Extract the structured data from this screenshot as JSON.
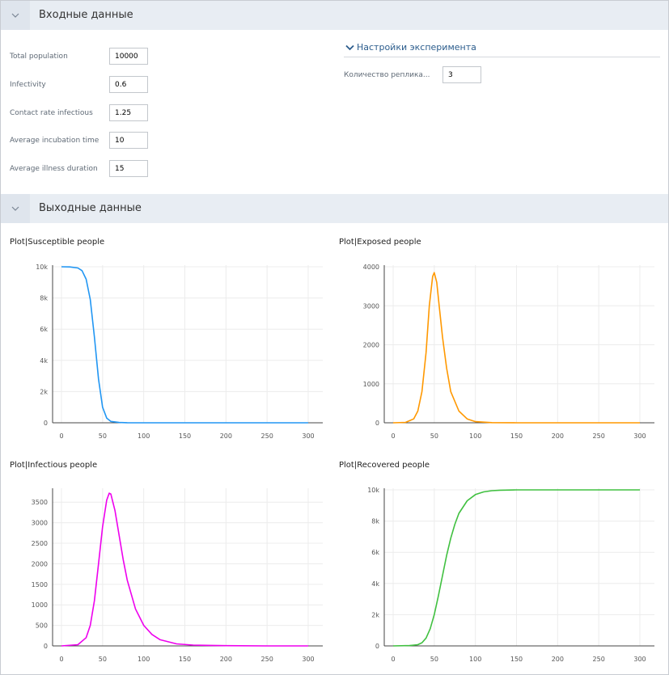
{
  "input_section": {
    "title": "Входные данные"
  },
  "params": [
    {
      "label": "Total population",
      "value": "10000"
    },
    {
      "label": "Infectivity",
      "value": "0.6"
    },
    {
      "label": "Contact rate infectious",
      "value": "1.25"
    },
    {
      "label": "Average incubation time",
      "value": "10"
    },
    {
      "label": "Average illness duration",
      "value": "15"
    }
  ],
  "experiment": {
    "title": "Настройки эксперимента",
    "replications_label": "Количество реплика...",
    "replications_value": "3"
  },
  "output_section": {
    "title": "Выходные данные"
  },
  "chart_data": [
    {
      "type": "line",
      "title": "Plot|Susceptible people",
      "color": "#2196f3",
      "x": [
        0,
        10,
        20,
        25,
        30,
        35,
        40,
        45,
        50,
        55,
        60,
        70,
        80,
        100,
        150,
        200,
        250,
        300
      ],
      "y": [
        10000,
        9990,
        9920,
        9750,
        9200,
        7900,
        5500,
        2800,
        1000,
        300,
        90,
        20,
        5,
        0,
        0,
        0,
        0,
        0
      ],
      "xlim": [
        0,
        300
      ],
      "xticks": [
        0,
        50,
        100,
        150,
        200,
        250,
        300
      ],
      "ylim": [
        0,
        10000
      ],
      "yticks": [
        0,
        2000,
        4000,
        6000,
        8000,
        10000
      ],
      "ytick_labels": [
        "0",
        "2k",
        "4k",
        "6k",
        "8k",
        "10k"
      ]
    },
    {
      "type": "line",
      "title": "Plot|Exposed people",
      "color": "#ff9800",
      "x": [
        0,
        15,
        25,
        30,
        35,
        40,
        44,
        48,
        50,
        53,
        56,
        60,
        65,
        70,
        80,
        90,
        100,
        120,
        150,
        200,
        250,
        300
      ],
      "y": [
        0,
        10,
        100,
        300,
        800,
        1800,
        3000,
        3750,
        3850,
        3600,
        3000,
        2200,
        1400,
        800,
        300,
        100,
        30,
        5,
        0,
        0,
        0,
        0
      ],
      "xlim": [
        0,
        300
      ],
      "xticks": [
        0,
        50,
        100,
        150,
        200,
        250,
        300
      ],
      "ylim": [
        0,
        4000
      ],
      "yticks": [
        0,
        1000,
        2000,
        3000,
        4000
      ],
      "ytick_labels": [
        "0",
        "1000",
        "2000",
        "3000",
        "4000"
      ]
    },
    {
      "type": "line",
      "title": "Plot|Infectious people",
      "color": "#ee00ee",
      "x": [
        0,
        20,
        30,
        35,
        40,
        45,
        50,
        55,
        58,
        60,
        65,
        70,
        75,
        80,
        90,
        100,
        110,
        120,
        140,
        160,
        200,
        250,
        300
      ],
      "y": [
        0,
        30,
        200,
        500,
        1100,
        2000,
        2900,
        3550,
        3720,
        3700,
        3300,
        2700,
        2100,
        1600,
        900,
        500,
        280,
        150,
        50,
        20,
        5,
        0,
        0
      ],
      "xlim": [
        0,
        300
      ],
      "xticks": [
        0,
        50,
        100,
        150,
        200,
        250,
        300
      ],
      "ylim": [
        0,
        3800
      ],
      "yticks": [
        0,
        500,
        1000,
        1500,
        2000,
        2500,
        3000,
        3500
      ],
      "ytick_labels": [
        "0",
        "500",
        "1000",
        "1500",
        "2000",
        "2500",
        "3000",
        "3500"
      ]
    },
    {
      "type": "line",
      "title": "Plot|Recovered people",
      "color": "#40c040",
      "x": [
        0,
        20,
        30,
        35,
        40,
        45,
        50,
        55,
        60,
        65,
        70,
        75,
        80,
        90,
        100,
        110,
        120,
        130,
        150,
        200,
        250,
        300
      ],
      "y": [
        0,
        20,
        80,
        200,
        500,
        1100,
        2000,
        3200,
        4500,
        5800,
        6900,
        7800,
        8500,
        9300,
        9700,
        9870,
        9950,
        9980,
        10000,
        10000,
        10000,
        10000
      ],
      "xlim": [
        0,
        300
      ],
      "xticks": [
        0,
        50,
        100,
        150,
        200,
        250,
        300
      ],
      "ylim": [
        0,
        10000
      ],
      "yticks": [
        0,
        2000,
        4000,
        6000,
        8000,
        10000
      ],
      "ytick_labels": [
        "0",
        "2k",
        "4k",
        "6k",
        "8k",
        "10k"
      ]
    }
  ]
}
